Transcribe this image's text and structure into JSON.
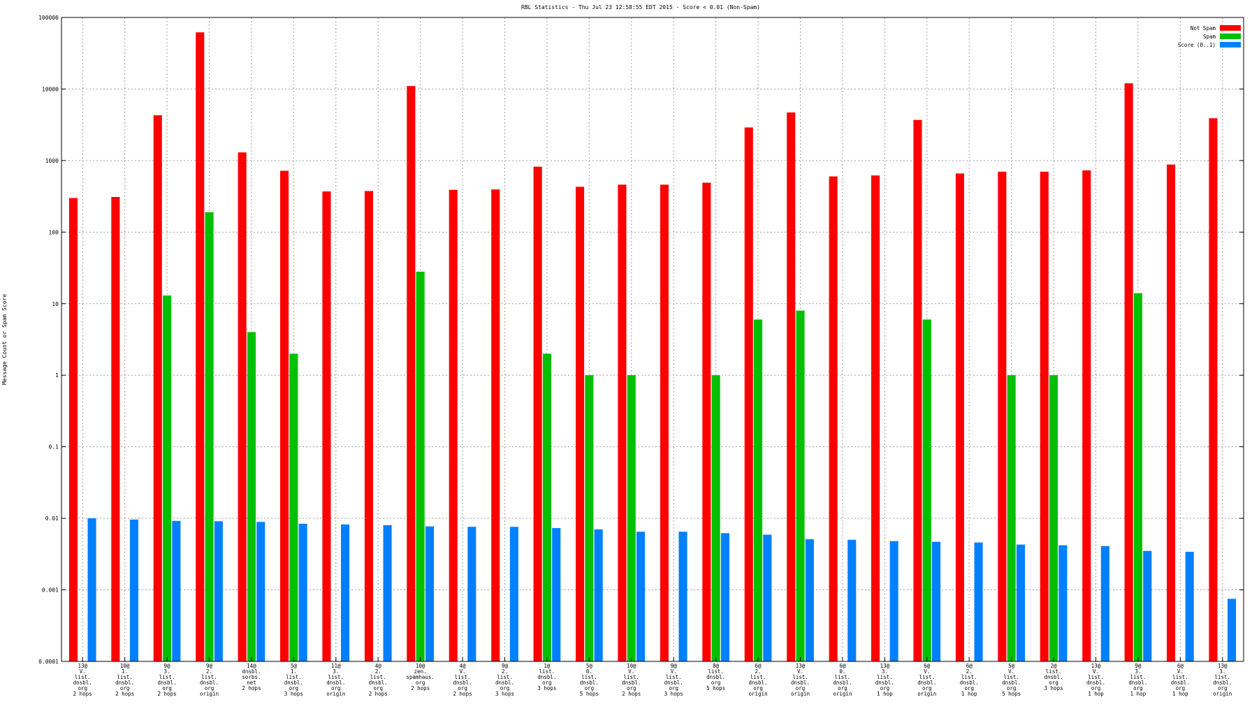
{
  "chart_data": {
    "type": "bar",
    "title": "RBL Statistics - Thu Jul 23 12:58:55 EDT 2015 - Score < 0.01 (Non-Spam)",
    "ylabel": "Message Count or Spam Score",
    "xlabel": "",
    "yscale": "log",
    "ylim": [
      0.0001,
      100000
    ],
    "yticks": [
      "0.0001",
      "0.001",
      "0.01",
      "0.1",
      "1",
      "10",
      "100",
      "1000",
      "10000",
      "100000"
    ],
    "grid": true,
    "legend_position": "top-right",
    "categories": [
      [
        "13@",
        "V.",
        "list.",
        "dnsbl.",
        "org",
        "2 hops"
      ],
      [
        "10@",
        "1.",
        "list.",
        "dnsbl.",
        "org",
        "2 hops"
      ],
      [
        "9@",
        "3.",
        "list.",
        "dnsbl.",
        "org",
        "2 hops"
      ],
      [
        "9@",
        "2.",
        "list.",
        "dnsbl.",
        "org",
        "origin"
      ],
      [
        "14@",
        "dnsbl.",
        "sorbs.",
        "net",
        "2 hops"
      ],
      [
        "5@",
        "1.",
        "list.",
        "dnsbl.",
        "org",
        "3 hops"
      ],
      [
        "11@",
        "3.",
        "list.",
        "dnsbl.",
        "org",
        "origin"
      ],
      [
        "4@",
        "2.",
        "list.",
        "dnsbl.",
        "org",
        "2 hops"
      ],
      [
        "10@",
        "zen.",
        "spamhaus.",
        "org",
        "2 hops"
      ],
      [
        "4@",
        "V.",
        "list.",
        "dnsbl.",
        "org",
        "2 hops"
      ],
      [
        "9@",
        "2.",
        "list.",
        "dnsbl.",
        "org",
        "3 hops"
      ],
      [
        "1@",
        "list.",
        "dnsbl.",
        "org",
        "3 hops"
      ],
      [
        "5@",
        "0.",
        "list.",
        "dnsbl.",
        "org",
        "5 hops"
      ],
      [
        "10@",
        "V.",
        "list.",
        "dnsbl.",
        "org",
        "2 hops"
      ],
      [
        "9@",
        "V.",
        "list.",
        "dnsbl.",
        "org",
        "3 hops"
      ],
      [
        "8@",
        "list.",
        "dnsbl.",
        "org",
        "5 hops"
      ],
      [
        "6@",
        "2.",
        "list.",
        "dnsbl.",
        "org",
        "origin"
      ],
      [
        "13@",
        "V.",
        "list.",
        "dnsbl.",
        "org",
        "origin"
      ],
      [
        "6@",
        "0.",
        "list.",
        "dnsbl.",
        "org",
        "origin"
      ],
      [
        "13@",
        "3.",
        "list.",
        "dnsbl.",
        "org",
        "1 hop"
      ],
      [
        "6@",
        "V.",
        "list.",
        "dnsbl.",
        "org",
        "origin"
      ],
      [
        "6@",
        "2.",
        "list.",
        "dnsbl.",
        "org",
        "1 hop"
      ],
      [
        "5@",
        "V.",
        "list.",
        "dnsbl.",
        "org",
        "5 hops"
      ],
      [
        "2@",
        "list.",
        "dnsbl.",
        "org",
        "3 hops"
      ],
      [
        "13@",
        "V.",
        "list.",
        "dnsbl.",
        "org",
        "1 hop"
      ],
      [
        "9@",
        "3.",
        "list.",
        "dnsbl.",
        "org",
        "1 hop"
      ],
      [
        "6@",
        "V.",
        "list.",
        "dnsbl.",
        "org",
        "1 hop"
      ],
      [
        "13@",
        "3.",
        "list.",
        "dnsbl.",
        "org",
        "origin"
      ]
    ],
    "series": [
      {
        "name": "Not Spam",
        "color": "#ff0000",
        "values": [
          300,
          310,
          4300,
          62000,
          1300,
          720,
          370,
          375,
          11000,
          390,
          395,
          820,
          430,
          460,
          460,
          490,
          2900,
          4700,
          600,
          620,
          3700,
          660,
          700,
          700,
          730,
          12000,
          880,
          3900
        ]
      },
      {
        "name": "Spam",
        "color": "#00c000",
        "values": [
          null,
          null,
          13,
          190,
          4,
          2,
          null,
          null,
          28,
          null,
          null,
          2,
          1,
          1,
          null,
          1,
          6,
          8,
          null,
          null,
          6,
          null,
          1,
          1,
          null,
          14,
          null,
          null
        ]
      },
      {
        "name": "Score (0..1)",
        "color": "#0080ff",
        "values": [
          0.01,
          0.0096,
          0.0092,
          0.0091,
          0.0089,
          0.0084,
          0.0082,
          0.008,
          0.0077,
          0.0076,
          0.0076,
          0.0073,
          0.007,
          0.0065,
          0.0065,
          0.0062,
          0.0059,
          0.0051,
          0.005,
          0.0048,
          0.0047,
          0.0046,
          0.0043,
          0.0042,
          0.0041,
          0.0035,
          0.0034,
          0.00075
        ]
      }
    ]
  }
}
